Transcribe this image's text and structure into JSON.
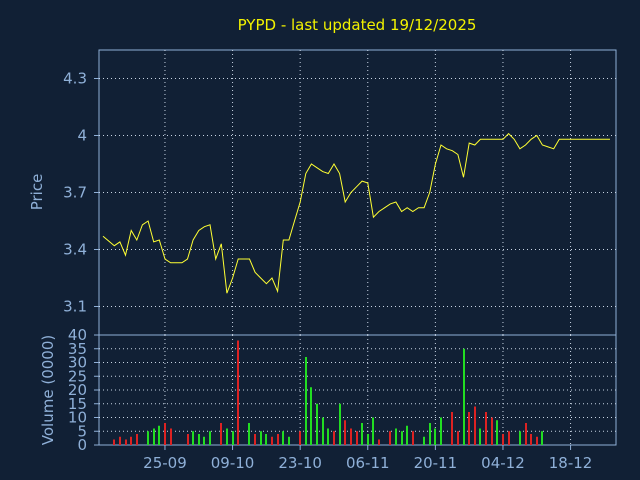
{
  "chart_data": [
    {
      "type": "line",
      "title": "PYPD - last updated 19/12/2025",
      "ylabel": "Price",
      "ylim": [
        2.95,
        4.45
      ],
      "yticks": [
        3.1,
        3.4,
        3.7,
        4,
        4.3
      ],
      "ytick_labels": [
        "3.1",
        "3.4",
        "3.7",
        "4",
        "4.3"
      ],
      "grid": true,
      "line_color": "#ffff33",
      "x_range": [
        0,
        90
      ],
      "series": [
        {
          "x": [
            0,
            2,
            3,
            4,
            5,
            6,
            7,
            8,
            9,
            10,
            11,
            12,
            13,
            14,
            15,
            16,
            17,
            18,
            19,
            20,
            21,
            22,
            23,
            24,
            25,
            26,
            27,
            28,
            29,
            30,
            31,
            32,
            33,
            34,
            35,
            36,
            37,
            38,
            39,
            40,
            41,
            42,
            43,
            44,
            45,
            46,
            47,
            48,
            49,
            50,
            51,
            52,
            53,
            54,
            55,
            56,
            57,
            58,
            59,
            60,
            61,
            62,
            63,
            64,
            65,
            66,
            67,
            68,
            69,
            70,
            71,
            72,
            73,
            74,
            75,
            76,
            77,
            78,
            79,
            80,
            81,
            82,
            83,
            84,
            85,
            86,
            87,
            88,
            89,
            90
          ],
          "y": [
            3.47,
            3.42,
            3.44,
            3.37,
            3.5,
            3.45,
            3.53,
            3.55,
            3.44,
            3.45,
            3.35,
            3.33,
            3.33,
            3.33,
            3.35,
            3.45,
            3.5,
            3.52,
            3.53,
            3.35,
            3.43,
            3.17,
            3.25,
            3.35,
            3.35,
            3.35,
            3.28,
            3.25,
            3.22,
            3.25,
            3.18,
            3.45,
            3.45,
            3.55,
            3.65,
            3.8,
            3.85,
            3.83,
            3.81,
            3.8,
            3.85,
            3.8,
            3.65,
            3.7,
            3.73,
            3.76,
            3.75,
            3.57,
            3.6,
            3.62,
            3.64,
            3.65,
            3.6,
            3.62,
            3.6,
            3.62,
            3.62,
            3.7,
            3.85,
            3.95,
            3.93,
            3.92,
            3.9,
            3.78,
            3.96,
            3.95,
            3.98,
            3.98,
            3.98,
            3.98,
            3.98,
            4.01,
            3.98,
            3.93,
            3.95,
            3.98,
            4.0,
            3.95,
            3.94,
            3.93,
            3.98,
            3.98,
            3.98,
            3.98,
            3.98,
            3.98,
            3.98,
            3.98,
            3.98,
            3.98
          ]
        }
      ]
    },
    {
      "type": "bar",
      "ylabel": "Volume (0000)",
      "ylim": [
        0,
        40
      ],
      "yticks": [
        0,
        5,
        10,
        15,
        20,
        25,
        30,
        35,
        40
      ],
      "ytick_labels": [
        "0",
        "5",
        "10",
        "15",
        "20",
        "25",
        "30",
        "35",
        "40"
      ],
      "grid": true,
      "up_color": "#22dd22",
      "down_color": "#dd2222",
      "categories": [
        "25-09",
        "09-10",
        "23-10",
        "06-11",
        "20-11",
        "04-12",
        "18-12"
      ],
      "category_x": [
        11,
        23,
        35,
        47,
        59,
        71,
        83
      ],
      "x_range": [
        0,
        90
      ],
      "bars": [
        {
          "x": 2,
          "v": 2,
          "up": false
        },
        {
          "x": 3,
          "v": 3,
          "up": false
        },
        {
          "x": 4,
          "v": 2,
          "up": false
        },
        {
          "x": 5,
          "v": 3,
          "up": false
        },
        {
          "x": 6,
          "v": 4,
          "up": false
        },
        {
          "x": 8,
          "v": 5,
          "up": true
        },
        {
          "x": 9,
          "v": 6,
          "up": true
        },
        {
          "x": 10,
          "v": 7,
          "up": true
        },
        {
          "x": 11,
          "v": 8,
          "up": false
        },
        {
          "x": 12,
          "v": 6,
          "up": false
        },
        {
          "x": 15,
          "v": 4,
          "up": false
        },
        {
          "x": 16,
          "v": 5,
          "up": true
        },
        {
          "x": 17,
          "v": 4,
          "up": true
        },
        {
          "x": 18,
          "v": 3,
          "up": true
        },
        {
          "x": 19,
          "v": 5,
          "up": true
        },
        {
          "x": 21,
          "v": 8,
          "up": false
        },
        {
          "x": 22,
          "v": 6,
          "up": true
        },
        {
          "x": 23,
          "v": 5,
          "up": true
        },
        {
          "x": 24,
          "v": 38,
          "up": false
        },
        {
          "x": 26,
          "v": 8,
          "up": true
        },
        {
          "x": 27,
          "v": 4,
          "up": false
        },
        {
          "x": 28,
          "v": 5,
          "up": true
        },
        {
          "x": 29,
          "v": 4,
          "up": true
        },
        {
          "x": 30,
          "v": 3,
          "up": false
        },
        {
          "x": 31,
          "v": 4,
          "up": false
        },
        {
          "x": 32,
          "v": 5,
          "up": true
        },
        {
          "x": 33,
          "v": 3,
          "up": true
        },
        {
          "x": 35,
          "v": 5,
          "up": false
        },
        {
          "x": 36,
          "v": 32,
          "up": true
        },
        {
          "x": 37,
          "v": 21,
          "up": true
        },
        {
          "x": 38,
          "v": 15,
          "up": true
        },
        {
          "x": 39,
          "v": 10,
          "up": true
        },
        {
          "x": 40,
          "v": 6,
          "up": true
        },
        {
          "x": 41,
          "v": 5,
          "up": false
        },
        {
          "x": 42,
          "v": 15,
          "up": true
        },
        {
          "x": 43,
          "v": 9,
          "up": false
        },
        {
          "x": 44,
          "v": 6,
          "up": false
        },
        {
          "x": 45,
          "v": 5,
          "up": false
        },
        {
          "x": 46,
          "v": 8,
          "up": true
        },
        {
          "x": 47,
          "v": 4,
          "up": true
        },
        {
          "x": 48,
          "v": 10,
          "up": true
        },
        {
          "x": 49,
          "v": 2,
          "up": false
        },
        {
          "x": 51,
          "v": 5,
          "up": false
        },
        {
          "x": 52,
          "v": 6,
          "up": true
        },
        {
          "x": 53,
          "v": 5,
          "up": true
        },
        {
          "x": 54,
          "v": 7,
          "up": true
        },
        {
          "x": 55,
          "v": 5,
          "up": false
        },
        {
          "x": 57,
          "v": 3,
          "up": true
        },
        {
          "x": 58,
          "v": 8,
          "up": true
        },
        {
          "x": 59,
          "v": 6,
          "up": true
        },
        {
          "x": 60,
          "v": 10,
          "up": true
        },
        {
          "x": 62,
          "v": 12,
          "up": false
        },
        {
          "x": 63,
          "v": 5,
          "up": false
        },
        {
          "x": 64,
          "v": 35,
          "up": true
        },
        {
          "x": 65,
          "v": 12,
          "up": false
        },
        {
          "x": 66,
          "v": 14,
          "up": false
        },
        {
          "x": 67,
          "v": 6,
          "up": true
        },
        {
          "x": 68,
          "v": 12,
          "up": false
        },
        {
          "x": 69,
          "v": 10,
          "up": false
        },
        {
          "x": 70,
          "v": 9,
          "up": true
        },
        {
          "x": 71,
          "v": 4,
          "up": false
        },
        {
          "x": 72,
          "v": 5,
          "up": false
        },
        {
          "x": 74,
          "v": 5,
          "up": true
        },
        {
          "x": 75,
          "v": 8,
          "up": false
        },
        {
          "x": 76,
          "v": 4,
          "up": false
        },
        {
          "x": 77,
          "v": 3,
          "up": false
        },
        {
          "x": 78,
          "v": 5,
          "up": true
        }
      ]
    }
  ]
}
